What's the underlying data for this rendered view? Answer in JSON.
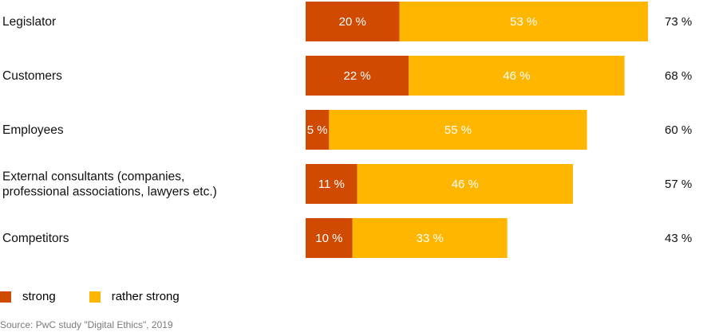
{
  "chart_data": {
    "type": "bar",
    "orientation": "horizontal",
    "stacked": true,
    "categories": [
      [
        "Legislator"
      ],
      [
        "Customers"
      ],
      [
        "Employees"
      ],
      [
        "External consultants (companies,",
        "professional associations, lawyers etc.)"
      ],
      [
        "Competitors"
      ]
    ],
    "series": [
      {
        "name": "strong",
        "color": "#d04a02",
        "values": [
          20,
          22,
          5,
          11,
          10
        ],
        "labels": [
          "20 %",
          "22 %",
          "5 %",
          "11 %",
          "10 %"
        ]
      },
      {
        "name": "rather strong",
        "color": "#ffb600",
        "values": [
          53,
          46,
          55,
          46,
          33
        ],
        "labels": [
          "53 %",
          "46 %",
          "55 %",
          "46 %",
          "33 %"
        ]
      }
    ],
    "totals": [
      "73 %",
      "68 %",
      "60 %",
      "57 %",
      "43 %"
    ],
    "xlim": [
      0,
      73
    ],
    "grid": false,
    "legend_position": "bottom-left"
  },
  "legend": {
    "strong": "strong",
    "rather_strong": "rather strong"
  },
  "source": "Source: PwC study \"Digital Ethics\", 2019",
  "colors": {
    "strong": "#d04a02",
    "rather_strong": "#ffb600"
  }
}
